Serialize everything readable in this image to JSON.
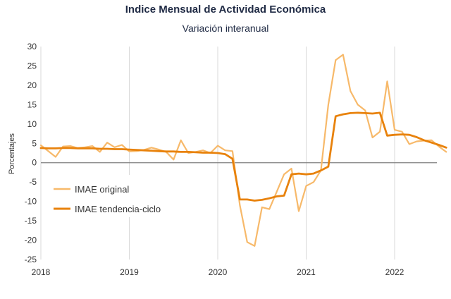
{
  "chart_data": {
    "type": "line",
    "title": "Indice Mensual de  Actividad Económica",
    "subtitle": "Variación interanual",
    "xlabel": "",
    "ylabel": "Porcentajes",
    "ylim": [
      -25,
      30
    ],
    "yticks": [
      30,
      25,
      20,
      15,
      10,
      5,
      0,
      -5,
      -10,
      -15,
      -20,
      -25
    ],
    "xticks": [
      "2018",
      "2019",
      "2020",
      "2021",
      "2022"
    ],
    "grid": "vertical-year-lines",
    "legend_position": "lower-left",
    "series": [
      {
        "name": "IMAE original",
        "color": "#F7B96A",
        "values": [
          4.5,
          3.0,
          1.5,
          4.2,
          4.3,
          3.8,
          4.0,
          4.3,
          2.8,
          5.2,
          4.0,
          4.6,
          2.9,
          3.0,
          3.3,
          3.9,
          3.4,
          2.8,
          0.8,
          5.8,
          2.5,
          2.8,
          3.2,
          2.5,
          4.4,
          3.2,
          3.0,
          -11.0,
          -20.5,
          -21.5,
          -11.5,
          -12.0,
          -7.5,
          -3.0,
          -1.5,
          -12.5,
          -6.0,
          -5.0,
          -2.0,
          15.0,
          26.5,
          27.9,
          18.5,
          15.0,
          13.5,
          6.5,
          8.0,
          21.0,
          8.5,
          8.0,
          4.8,
          5.5,
          5.7,
          5.8,
          4.2,
          2.8
        ]
      },
      {
        "name": "IMAE tendencia-ciclo",
        "color": "#E8820C",
        "values": [
          3.8,
          3.7,
          3.7,
          3.8,
          3.8,
          3.7,
          3.7,
          3.7,
          3.6,
          3.6,
          3.5,
          3.5,
          3.4,
          3.3,
          3.2,
          3.1,
          3.0,
          2.9,
          2.9,
          2.8,
          2.8,
          2.7,
          2.6,
          2.6,
          2.5,
          2.2,
          1.0,
          -9.5,
          -9.5,
          -9.8,
          -9.6,
          -9.2,
          -8.7,
          -8.5,
          -3.0,
          -2.8,
          -3.0,
          -2.8,
          -2.0,
          -1.0,
          12.0,
          12.5,
          12.8,
          12.9,
          12.8,
          12.7,
          12.9,
          7.0,
          7.2,
          7.3,
          7.2,
          6.6,
          5.8,
          5.2,
          4.6,
          3.9
        ]
      }
    ]
  }
}
